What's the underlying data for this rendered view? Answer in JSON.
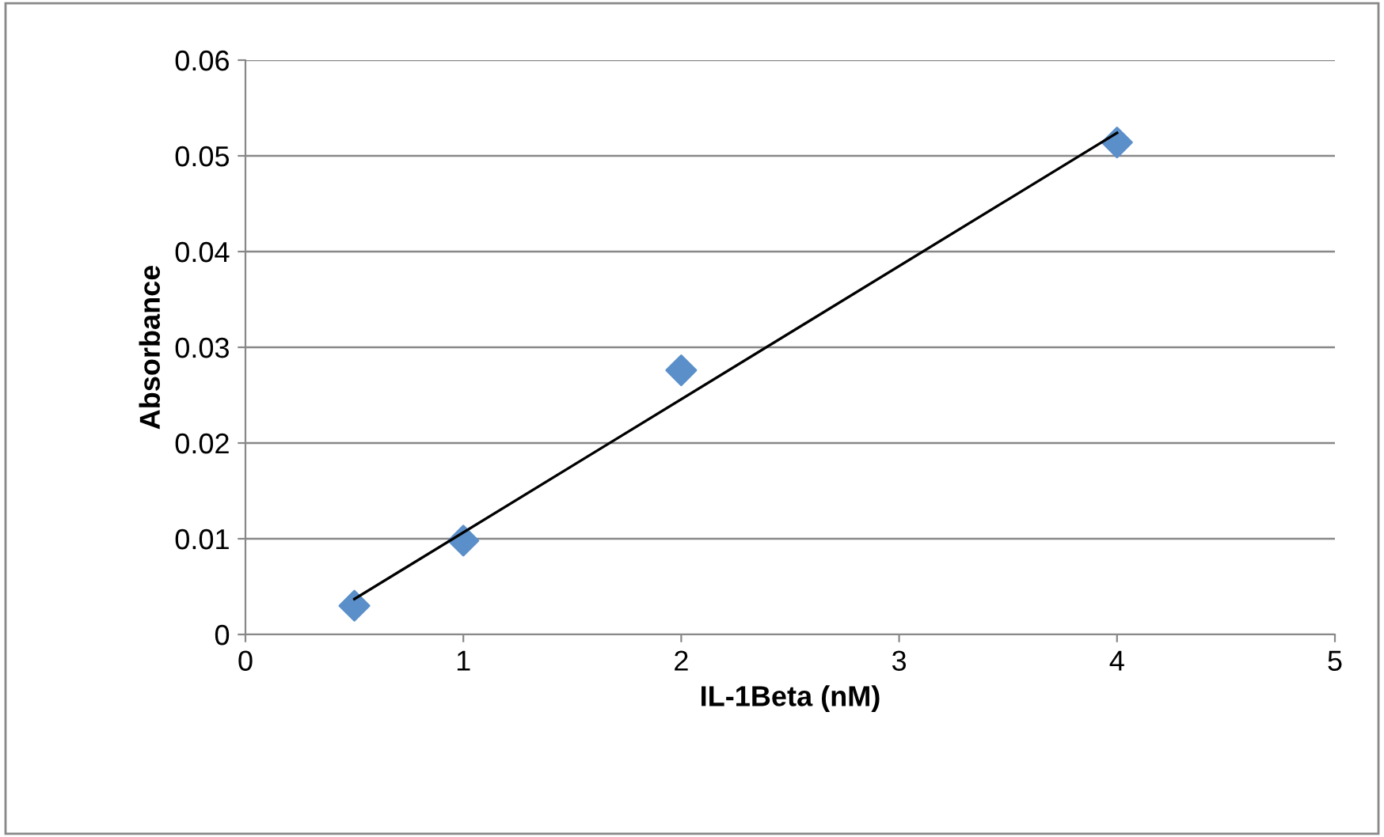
{
  "chart_data": {
    "type": "scatter",
    "xlabel": "IL-1Beta (nM)",
    "ylabel": "Absorbance",
    "xlim": [
      0,
      5
    ],
    "xticks": [
      0,
      1,
      2,
      3,
      4,
      5
    ],
    "ylim": [
      0,
      0.06
    ],
    "yticks": [
      0,
      0.01,
      0.02,
      0.03,
      0.04,
      0.05,
      0.06
    ],
    "grid": "y",
    "legend": false,
    "marker": "diamond",
    "series": [
      {
        "color": "#5b8fc9",
        "x": [
          0.5,
          1,
          2,
          4
        ],
        "values": [
          0.003,
          0.0098,
          0.0276,
          0.0514
        ]
      },
      {
        "type": "line",
        "color": "#000000",
        "marker": "none",
        "x": [
          0.5,
          4
        ],
        "values": [
          0.0037,
          0.0524
        ]
      }
    ]
  }
}
